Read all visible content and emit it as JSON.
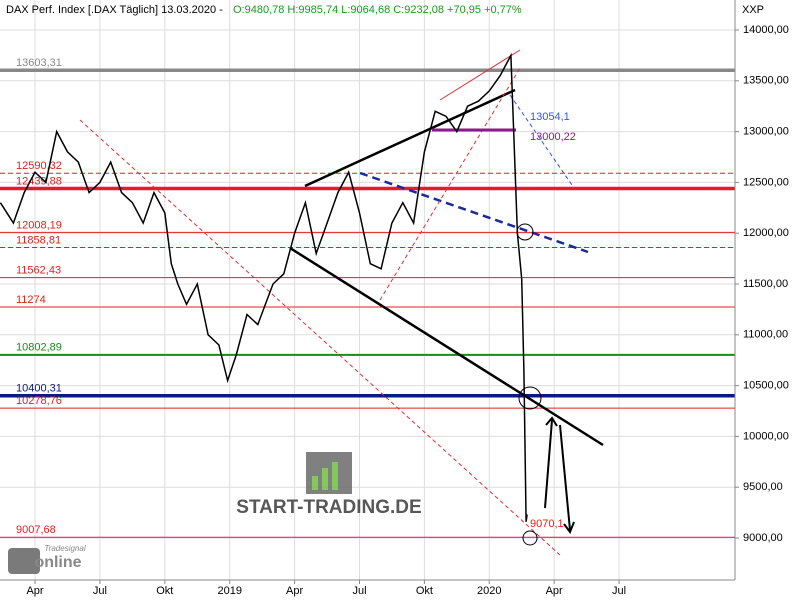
{
  "chart_data": {
    "type": "line",
    "title": "DAX Perf. Index [.DAX  Täglich] 13.03.2020 -",
    "subtitle": "O:9480,78 H:9985,74 L:9064,68 C:9232,08 +70,95 +0,77%",
    "y_label": "XXP",
    "watermark": "START-TRADING.DE",
    "provider": "Tradesignal",
    "provider_brand": "online",
    "xlim": [
      1.38,
      35.36
    ],
    "xticks": [
      {
        "value": 3,
        "label": "Apr"
      },
      {
        "value": 6,
        "label": "Jul"
      },
      {
        "value": 9,
        "label": "Okt"
      },
      {
        "value": 12,
        "label": "2019"
      },
      {
        "value": 15,
        "label": "Apr"
      },
      {
        "value": 18,
        "label": "Jul"
      },
      {
        "value": 21,
        "label": "Okt"
      },
      {
        "value": 24,
        "label": "2020"
      },
      {
        "value": 27,
        "label": "Apr"
      },
      {
        "value": 30,
        "label": "Jul"
      }
    ],
    "ylim": [
      8587,
      14295
    ],
    "yticks": [
      {
        "value": 9000,
        "label": "9000,00"
      },
      {
        "value": 9500,
        "label": "9500,00"
      },
      {
        "value": 10000,
        "label": "10000,00"
      },
      {
        "value": 10500,
        "label": "10500,00"
      },
      {
        "value": 11000,
        "label": "11000,00"
      },
      {
        "value": 11500,
        "label": "11500,00"
      },
      {
        "value": 12000,
        "label": "12000,00"
      },
      {
        "value": 12500,
        "label": "12500,00"
      },
      {
        "value": 13000,
        "label": "13000,00"
      },
      {
        "value": 13500,
        "label": "13500,00"
      },
      {
        "value": 14000,
        "label": "14000,00"
      }
    ],
    "grid": true,
    "x": [
      1.4,
      2.0,
      2.5,
      3.0,
      3.5,
      4.0,
      4.5,
      5.0,
      5.5,
      6.0,
      6.5,
      7.0,
      7.5,
      8.0,
      8.5,
      9.0,
      9.3,
      9.6,
      10.0,
      10.5,
      11.0,
      11.5,
      11.9,
      12.3,
      12.8,
      13.3,
      14.0,
      14.5,
      15.0,
      15.5,
      16.0,
      16.5,
      17.0,
      17.5,
      18.0,
      18.5,
      19.0,
      19.5,
      20.0,
      20.5,
      21.0,
      21.5,
      22.0,
      22.5,
      23.0,
      23.5,
      24.0,
      24.5,
      25.0,
      25.3,
      25.5,
      25.6,
      25.7,
      25.75
    ],
    "series": [
      {
        "name": "DAX",
        "color": "#000000",
        "values": [
          12300,
          12100,
          12400,
          12600,
          12500,
          13000,
          12800,
          12700,
          12400,
          12500,
          12700,
          12400,
          12300,
          12100,
          12400,
          12200,
          11700,
          11500,
          11300,
          11500,
          11000,
          10900,
          10550,
          10800,
          11200,
          11100,
          11500,
          11600,
          12000,
          12300,
          11800,
          12100,
          12400,
          12600,
          12200,
          11700,
          11650,
          12100,
          12300,
          12100,
          12800,
          13200,
          13150,
          13000,
          13250,
          13300,
          13400,
          13550,
          13750,
          12000,
          11550,
          10650,
          9160,
          9232
        ]
      }
    ],
    "levels": [
      {
        "value": 13603.31,
        "label": "13603,31",
        "color": "#888888",
        "style": "thick"
      },
      {
        "value": 12590.32,
        "label": "12590,32",
        "color": "#e02020",
        "style": "dashed"
      },
      {
        "value": 12439.88,
        "label": "12439,88",
        "color": "#e02020",
        "style": "thick"
      },
      {
        "value": 12008.19,
        "label": "12008,19",
        "color": "#e02020",
        "style": "thin"
      },
      {
        "value": 11858.81,
        "label": "11858,81",
        "color": "#e02020",
        "style": "dashed"
      },
      {
        "value": 11562.43,
        "label": "11562,43",
        "color": "#e02020",
        "style": "thin"
      },
      {
        "value": 11274,
        "label": "11274",
        "color": "#e02020",
        "style": "thin"
      },
      {
        "value": 10802.89,
        "label": "10802,89",
        "color": "#1a8a1a",
        "style": "medium"
      },
      {
        "value": 10400.31,
        "label": "10400,31",
        "color": "#0a1a80",
        "style": "thick"
      },
      {
        "value": 10278.76,
        "label": "10278,76",
        "color": "#e02020",
        "style": "thin"
      },
      {
        "value": 9007.68,
        "label": "9007,68",
        "color": "#e02020",
        "style": "thin"
      }
    ],
    "annotations": [
      {
        "text": "13054,1",
        "color": "#3355dd"
      },
      {
        "text": "13000,22",
        "color": "#8b1a8b"
      },
      {
        "text": "9070,1",
        "color": "#e02020"
      }
    ]
  }
}
